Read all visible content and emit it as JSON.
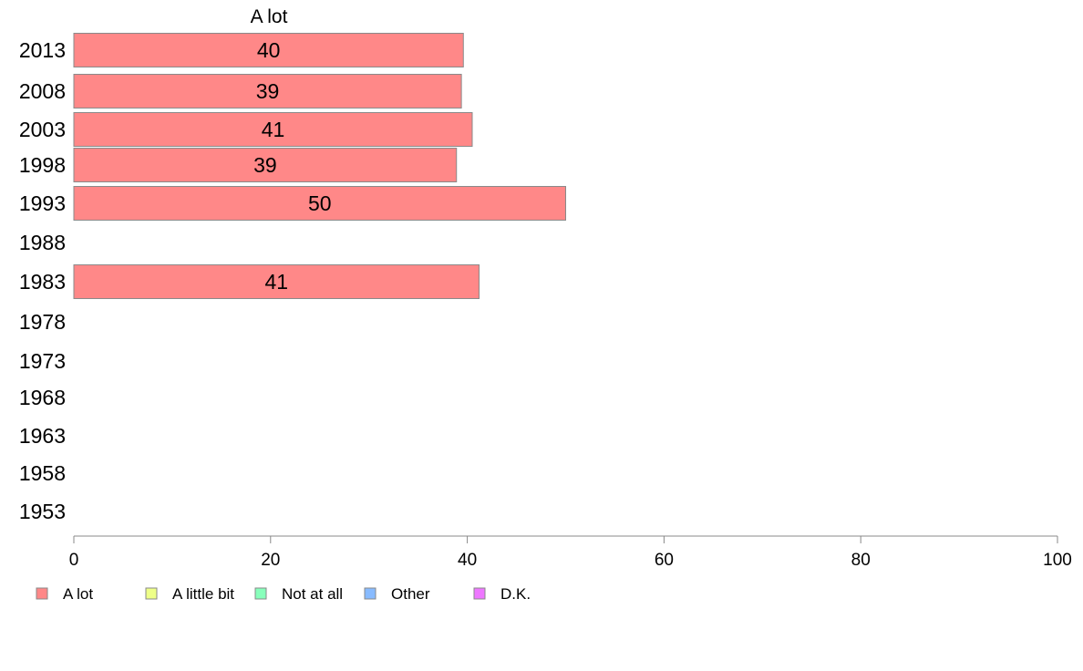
{
  "chart_data": {
    "type": "bar",
    "orientation": "horizontal",
    "title": "A lot",
    "xlabel": "",
    "ylabel": "",
    "xlim": [
      0,
      100
    ],
    "x_ticks": [
      0,
      20,
      40,
      60,
      80,
      100
    ],
    "categories": [
      "2013",
      "2008",
      "2003",
      "1998",
      "1993",
      "1988",
      "1983",
      "1978",
      "1973",
      "1968",
      "1963",
      "1958",
      "1953"
    ],
    "series": [
      {
        "name": "A lot",
        "color": "#ff8888",
        "values": [
          39.6,
          39.4,
          40.5,
          38.9,
          50.0,
          null,
          41.2,
          null,
          null,
          null,
          null,
          null,
          null
        ],
        "labels": [
          "40",
          "39",
          "41",
          "39",
          "50",
          "",
          "41",
          "",
          "",
          "",
          "",
          "",
          ""
        ]
      }
    ],
    "grid": false,
    "legend_position": "bottom-left",
    "legend": [
      {
        "label": "A lot",
        "color": "#ff8888"
      },
      {
        "label": "A little bit",
        "color": "#eeff88"
      },
      {
        "label": "Not at all",
        "color": "#88ffbb"
      },
      {
        "label": "Other",
        "color": "#88bbff"
      },
      {
        "label": "D.K.",
        "color": "#ee77ff"
      }
    ]
  }
}
